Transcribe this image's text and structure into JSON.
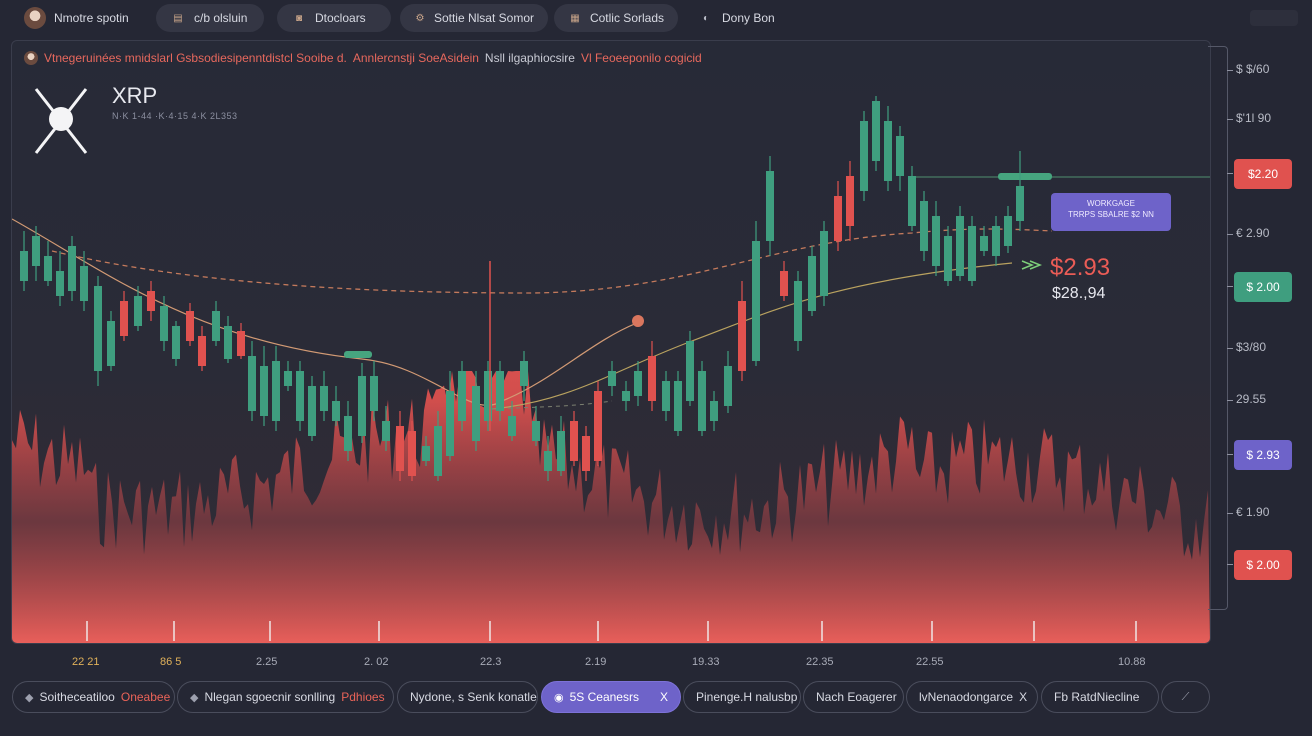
{
  "tabs": [
    {
      "label": "Nmotre spotin"
    },
    {
      "icon": "chart-icon",
      "label": "c/b olsluin"
    },
    {
      "icon": "tv-icon",
      "label": "Dtocloars"
    },
    {
      "icon": "settings-icon",
      "label": "Sottie Nlsat Somor"
    },
    {
      "icon": "grid-icon",
      "label": "Cotlic Sorlads"
    },
    {
      "icon": "user-icon",
      "label": "Dony Bon"
    }
  ],
  "banner": {
    "part1": "Vtnegeruinées mnidslarl Gsbsodiesipenntdistcl Sooibe d.",
    "part2": "Annlercnstji SoeAsidein",
    "part3": "Nsll ilgaphiocsire",
    "part4": "Vl Feoeeponilo cogicid"
  },
  "coin": {
    "name": "XRP",
    "subtitle": "N·K 1-44 ·K·4·15 4·K 2L353"
  },
  "tooltip": {
    "line1": "WORKGAGE",
    "line2": "TRRPS SBALRE $2 NN"
  },
  "price": {
    "big": "$2.93",
    "small": "$28.,94"
  },
  "y_axis": {
    "ticks": [
      "$ $/60",
      "$'1l 90",
      "$2.20",
      "€ 2.90",
      "$ 2.00",
      "$3/80",
      "29.55",
      "$ 2.93",
      "€ 1.90",
      "$ 2.00"
    ],
    "pill_colors": {
      "red": "#e0524f",
      "green": "#3f9e7f",
      "purple": "#6e63c9"
    }
  },
  "x_axis": {
    "ticks": [
      "22 21",
      "86 5",
      "2.25",
      "2. 02",
      "22.3",
      "2.19",
      "19.33",
      "22.35",
      "22.55",
      "10.88"
    ]
  },
  "bottom_chips": [
    {
      "label": "Soitheceatiloo",
      "highlight": "Oneabee"
    },
    {
      "label": "Nlegan sgoecnir sonlling",
      "highlight": "Pdhioes"
    },
    {
      "label": "Nydone, s Senk konatle"
    },
    {
      "label": "5S Ceanesrs",
      "suffix": "X"
    },
    {
      "label": "Pinenge.H nalusbp"
    },
    {
      "label": "Nach Eoagerer"
    },
    {
      "label": "lvNenaodongarce",
      "suffix": "X"
    },
    {
      "label": "Fb RatdNiecline"
    },
    {
      "icon": "expand-icon"
    }
  ],
  "colors": {
    "up": "#3f9e7f",
    "down": "#e0524f",
    "accent": "#6e63c9",
    "bg": "#252734"
  }
}
